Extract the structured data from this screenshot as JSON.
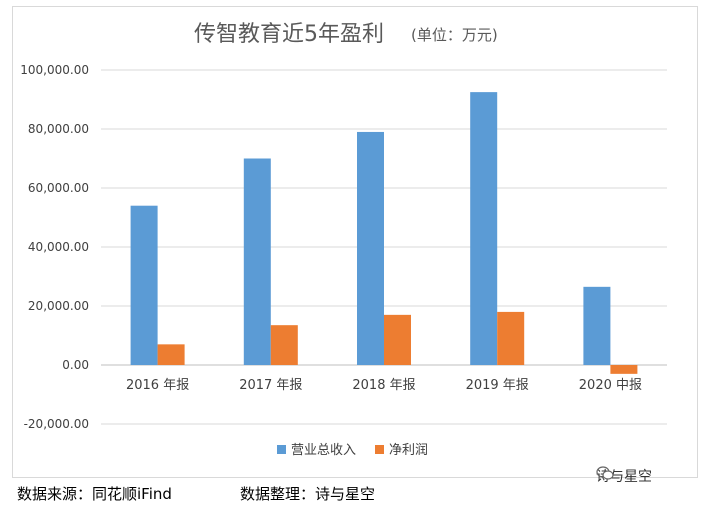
{
  "chart_data": {
    "type": "bar",
    "title": "传智教育近5年盈利",
    "subtitle": "(单位：万元)",
    "categories": [
      "2016 年报",
      "2017 年报",
      "2018 年报",
      "2019 年报",
      "2020 中报"
    ],
    "series": [
      {
        "name": "营业总收入",
        "color": "#5b9bd5",
        "values": [
          54000,
          70000,
          79000,
          92500,
          26500
        ]
      },
      {
        "name": "净利润",
        "color": "#ed7d31",
        "values": [
          7000,
          13500,
          17000,
          18000,
          -3000
        ]
      }
    ],
    "y_ticks": [
      "100,000.00",
      "80,000.00",
      "60,000.00",
      "40,000.00",
      "20,000.00",
      "0.00",
      "-20,000.00"
    ],
    "ylim": [
      -20000,
      100000
    ],
    "grid": true,
    "legend_position": "bottom"
  },
  "footer": {
    "source": "数据来源：同花顺iFind",
    "organizer": "数据整理：诗与星空"
  },
  "watermark": {
    "text": "诗与星空",
    "icon": "wechat-icon"
  }
}
